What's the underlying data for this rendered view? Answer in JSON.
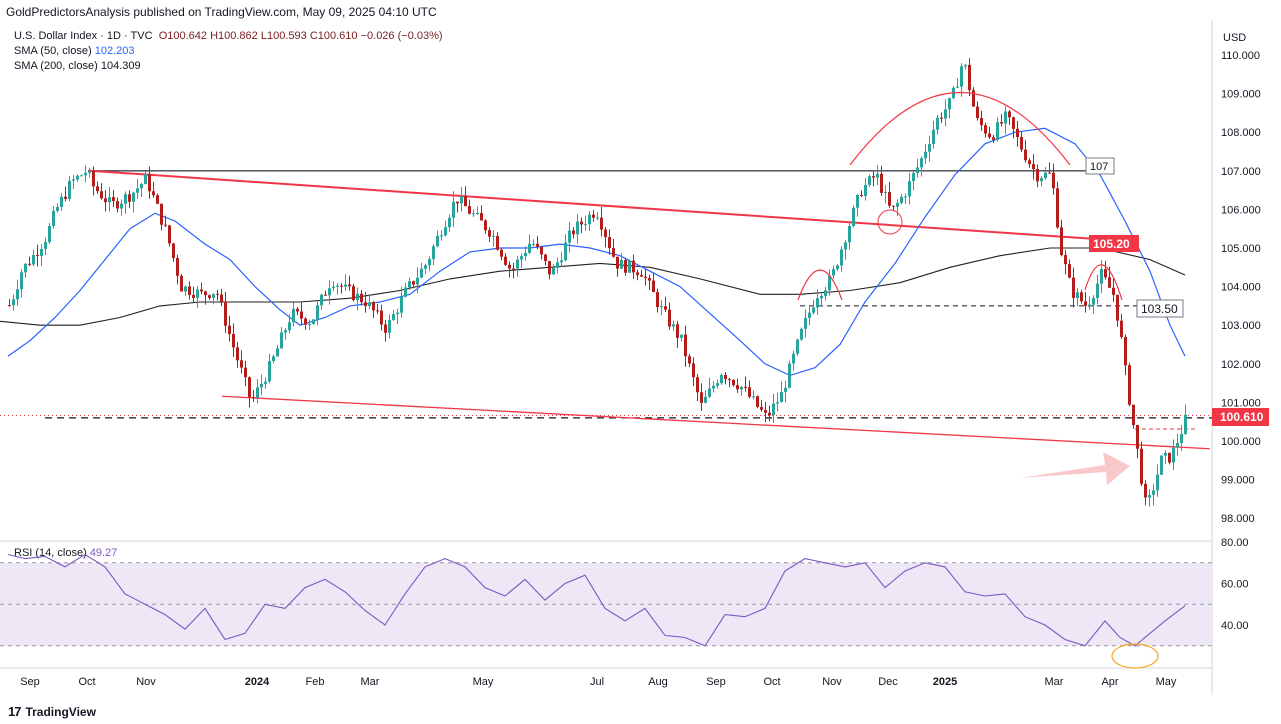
{
  "header": {
    "publisher": "GoldPredictorsAnalysis published on TradingView.com, May 09, 2025 04:10 UTC"
  },
  "legend": {
    "symbol": "U.S. Dollar Index · 1D · TVC",
    "open": "O100.642",
    "high": "H100.862",
    "low": "L100.593",
    "close": "C100.610",
    "change": "−0.026 (−0.03%)",
    "sma50_label": "SMA (50, close)",
    "sma50_value": "102.203",
    "sma200_label": "SMA (200, close)",
    "sma200_value": "104.309",
    "rsi_label": "RSI (14, close)",
    "rsi_value": "49.27"
  },
  "axis": {
    "currency": "USD",
    "price_ticks": [
      "110.000",
      "109.000",
      "108.000",
      "107.000",
      "106.000",
      "105.000",
      "104.000",
      "103.000",
      "102.000",
      "101.000",
      "100.000",
      "99.000",
      "98.000"
    ],
    "rsi_ticks": [
      "80.00",
      "60.00",
      "40.00"
    ],
    "months": [
      "Sep",
      "Oct",
      "Nov",
      "Dec",
      "2024",
      "Feb",
      "Mar",
      "May",
      "Jul",
      "Aug",
      "Sep",
      "Oct",
      "Nov",
      "Dec",
      "2025",
      "Mar",
      "Apr",
      "May"
    ]
  },
  "annotations": {
    "level_107": "107",
    "level_105": "105.20",
    "level_103": "103.50",
    "last_price": "100.610"
  },
  "footer": {
    "brand": "TradingView",
    "logo": "17"
  },
  "colors": {
    "up": "#26a69a",
    "down": "#b71c1c",
    "sma50": "#2962ff",
    "sma200": "#212121",
    "trend": "#f23645",
    "rsi": "#7e57c2",
    "rsi_band": "#ede7f6"
  },
  "chart_data": {
    "type": "candlestick",
    "title": "U.S. Dollar Index · 1D · TVC",
    "ylabel": "USD",
    "ylim": [
      97.6,
      110.4
    ],
    "rsi_ylim": [
      25,
      80
    ],
    "x": [
      "2023-09",
      "2023-10",
      "2023-11",
      "2023-12",
      "2024-01",
      "2024-02",
      "2024-03",
      "2024-05",
      "2024-07",
      "2024-08",
      "2024-09",
      "2024-10",
      "2024-11",
      "2024-12",
      "2025-01",
      "2025-03",
      "2025-04",
      "2025-05"
    ],
    "close_path": [
      [
        0,
        103.2
      ],
      [
        10,
        103.6
      ],
      [
        20,
        104.4
      ],
      [
        32,
        104.8
      ],
      [
        45,
        105.3
      ],
      [
        55,
        106.0
      ],
      [
        70,
        106.7
      ],
      [
        85,
        107.0
      ],
      [
        92,
        106.6
      ],
      [
        110,
        106.1
      ],
      [
        130,
        106.4
      ],
      [
        145,
        106.8
      ],
      [
        165,
        105.4
      ],
      [
        180,
        104.0
      ],
      [
        200,
        103.8
      ],
      [
        215,
        103.9
      ],
      [
        230,
        102.6
      ],
      [
        250,
        101.0
      ],
      [
        270,
        102.0
      ],
      [
        290,
        103.3
      ],
      [
        310,
        103.1
      ],
      [
        330,
        104.2
      ],
      [
        345,
        103.9
      ],
      [
        365,
        103.6
      ],
      [
        385,
        102.9
      ],
      [
        405,
        103.9
      ],
      [
        425,
        104.6
      ],
      [
        440,
        105.5
      ],
      [
        455,
        106.3
      ],
      [
        470,
        105.9
      ],
      [
        490,
        105.4
      ],
      [
        510,
        104.4
      ],
      [
        530,
        105.2
      ],
      [
        550,
        104.3
      ],
      [
        570,
        105.4
      ],
      [
        595,
        106.0
      ],
      [
        615,
        104.6
      ],
      [
        640,
        104.4
      ],
      [
        660,
        103.4
      ],
      [
        680,
        102.6
      ],
      [
        700,
        100.9
      ],
      [
        720,
        101.8
      ],
      [
        740,
        101.4
      ],
      [
        765,
        100.6
      ],
      [
        780,
        101.2
      ],
      [
        800,
        102.8
      ],
      [
        815,
        103.8
      ],
      [
        830,
        104.2
      ],
      [
        845,
        105.4
      ],
      [
        860,
        106.5
      ],
      [
        875,
        106.9
      ],
      [
        890,
        105.9
      ],
      [
        905,
        106.5
      ],
      [
        920,
        107.3
      ],
      [
        935,
        108.3
      ],
      [
        950,
        108.8
      ],
      [
        962,
        109.9
      ],
      [
        975,
        108.3
      ],
      [
        990,
        107.9
      ],
      [
        1005,
        108.4
      ],
      [
        1020,
        107.6
      ],
      [
        1035,
        106.9
      ],
      [
        1050,
        106.9
      ],
      [
        1060,
        104.9
      ],
      [
        1070,
        103.9
      ],
      [
        1085,
        103.5
      ],
      [
        1100,
        104.3
      ],
      [
        1112,
        103.8
      ],
      [
        1118,
        103.0
      ],
      [
        1125,
        101.6
      ],
      [
        1135,
        99.9
      ],
      [
        1145,
        98.2
      ],
      [
        1160,
        99.5
      ],
      [
        1170,
        99.6
      ],
      [
        1185,
        100.6
      ]
    ],
    "sma50_path": [
      [
        8,
        102.2
      ],
      [
        30,
        102.6
      ],
      [
        55,
        103.2
      ],
      [
        80,
        103.9
      ],
      [
        105,
        104.7
      ],
      [
        130,
        105.5
      ],
      [
        155,
        105.9
      ],
      [
        175,
        105.7
      ],
      [
        205,
        105.1
      ],
      [
        230,
        104.7
      ],
      [
        255,
        104.0
      ],
      [
        280,
        103.4
      ],
      [
        300,
        103.0
      ],
      [
        325,
        103.2
      ],
      [
        350,
        103.5
      ],
      [
        380,
        103.6
      ],
      [
        410,
        103.8
      ],
      [
        440,
        104.4
      ],
      [
        470,
        104.9
      ],
      [
        500,
        105.0
      ],
      [
        530,
        105.0
      ],
      [
        560,
        105.1
      ],
      [
        590,
        105.0
      ],
      [
        620,
        104.8
      ],
      [
        650,
        104.4
      ],
      [
        680,
        104.0
      ],
      [
        710,
        103.3
      ],
      [
        740,
        102.6
      ],
      [
        765,
        102.0
      ],
      [
        790,
        101.7
      ],
      [
        815,
        101.9
      ],
      [
        840,
        102.5
      ],
      [
        865,
        103.6
      ],
      [
        895,
        104.6
      ],
      [
        925,
        105.8
      ],
      [
        955,
        106.9
      ],
      [
        985,
        107.7
      ],
      [
        1015,
        108.0
      ],
      [
        1045,
        108.1
      ],
      [
        1075,
        107.7
      ],
      [
        1100,
        106.9
      ],
      [
        1125,
        105.7
      ],
      [
        1150,
        104.4
      ],
      [
        1170,
        103.0
      ],
      [
        1185,
        102.2
      ]
    ],
    "sma200_path": [
      [
        0,
        103.1
      ],
      [
        40,
        103.0
      ],
      [
        80,
        103.0
      ],
      [
        120,
        103.2
      ],
      [
        160,
        103.5
      ],
      [
        200,
        103.6
      ],
      [
        250,
        103.6
      ],
      [
        300,
        103.6
      ],
      [
        350,
        103.7
      ],
      [
        400,
        103.9
      ],
      [
        450,
        104.2
      ],
      [
        500,
        104.4
      ],
      [
        550,
        104.5
      ],
      [
        600,
        104.6
      ],
      [
        650,
        104.5
      ],
      [
        700,
        104.2
      ],
      [
        760,
        103.8
      ],
      [
        800,
        103.8
      ],
      [
        850,
        103.9
      ],
      [
        900,
        104.1
      ],
      [
        950,
        104.5
      ],
      [
        1000,
        104.8
      ],
      [
        1050,
        105.0
      ],
      [
        1100,
        105.0
      ],
      [
        1150,
        104.7
      ],
      [
        1185,
        104.3
      ]
    ],
    "rsi_path": [
      [
        8,
        74
      ],
      [
        25,
        72
      ],
      [
        45,
        73
      ],
      [
        65,
        68
      ],
      [
        85,
        74
      ],
      [
        105,
        68
      ],
      [
        125,
        55
      ],
      [
        145,
        50
      ],
      [
        165,
        45
      ],
      [
        185,
        38
      ],
      [
        205,
        48
      ],
      [
        225,
        33
      ],
      [
        245,
        36
      ],
      [
        265,
        50
      ],
      [
        285,
        48
      ],
      [
        305,
        58
      ],
      [
        325,
        62
      ],
      [
        345,
        56
      ],
      [
        365,
        47
      ],
      [
        385,
        40
      ],
      [
        405,
        55
      ],
      [
        425,
        68
      ],
      [
        445,
        72
      ],
      [
        465,
        68
      ],
      [
        485,
        58
      ],
      [
        505,
        54
      ],
      [
        525,
        62
      ],
      [
        545,
        52
      ],
      [
        565,
        60
      ],
      [
        585,
        64
      ],
      [
        605,
        48
      ],
      [
        625,
        42
      ],
      [
        645,
        48
      ],
      [
        665,
        35
      ],
      [
        685,
        34
      ],
      [
        705,
        30
      ],
      [
        725,
        45
      ],
      [
        745,
        44
      ],
      [
        765,
        48
      ],
      [
        785,
        66
      ],
      [
        805,
        72
      ],
      [
        825,
        70
      ],
      [
        845,
        68
      ],
      [
        865,
        70
      ],
      [
        885,
        58
      ],
      [
        905,
        66
      ],
      [
        925,
        70
      ],
      [
        945,
        68
      ],
      [
        965,
        56
      ],
      [
        985,
        54
      ],
      [
        1005,
        55
      ],
      [
        1025,
        44
      ],
      [
        1045,
        40
      ],
      [
        1065,
        33
      ],
      [
        1085,
        30
      ],
      [
        1105,
        42
      ],
      [
        1120,
        34
      ],
      [
        1135,
        30
      ],
      [
        1150,
        36
      ],
      [
        1165,
        42
      ],
      [
        1185,
        49.27
      ]
    ],
    "trend_down": {
      "from": [
        90,
        107.0
      ],
      "to": [
        1115,
        105.2
      ]
    },
    "trend_low": {
      "from": [
        222,
        100.9
      ],
      "to": [
        1210,
        99.8
      ]
    },
    "level_107": 107.0,
    "level_103_5": 103.5,
    "support_dashed": 100.6,
    "last": 100.61,
    "rsi_upper": 70,
    "rsi_mid": 50,
    "rsi_lower": 30
  }
}
